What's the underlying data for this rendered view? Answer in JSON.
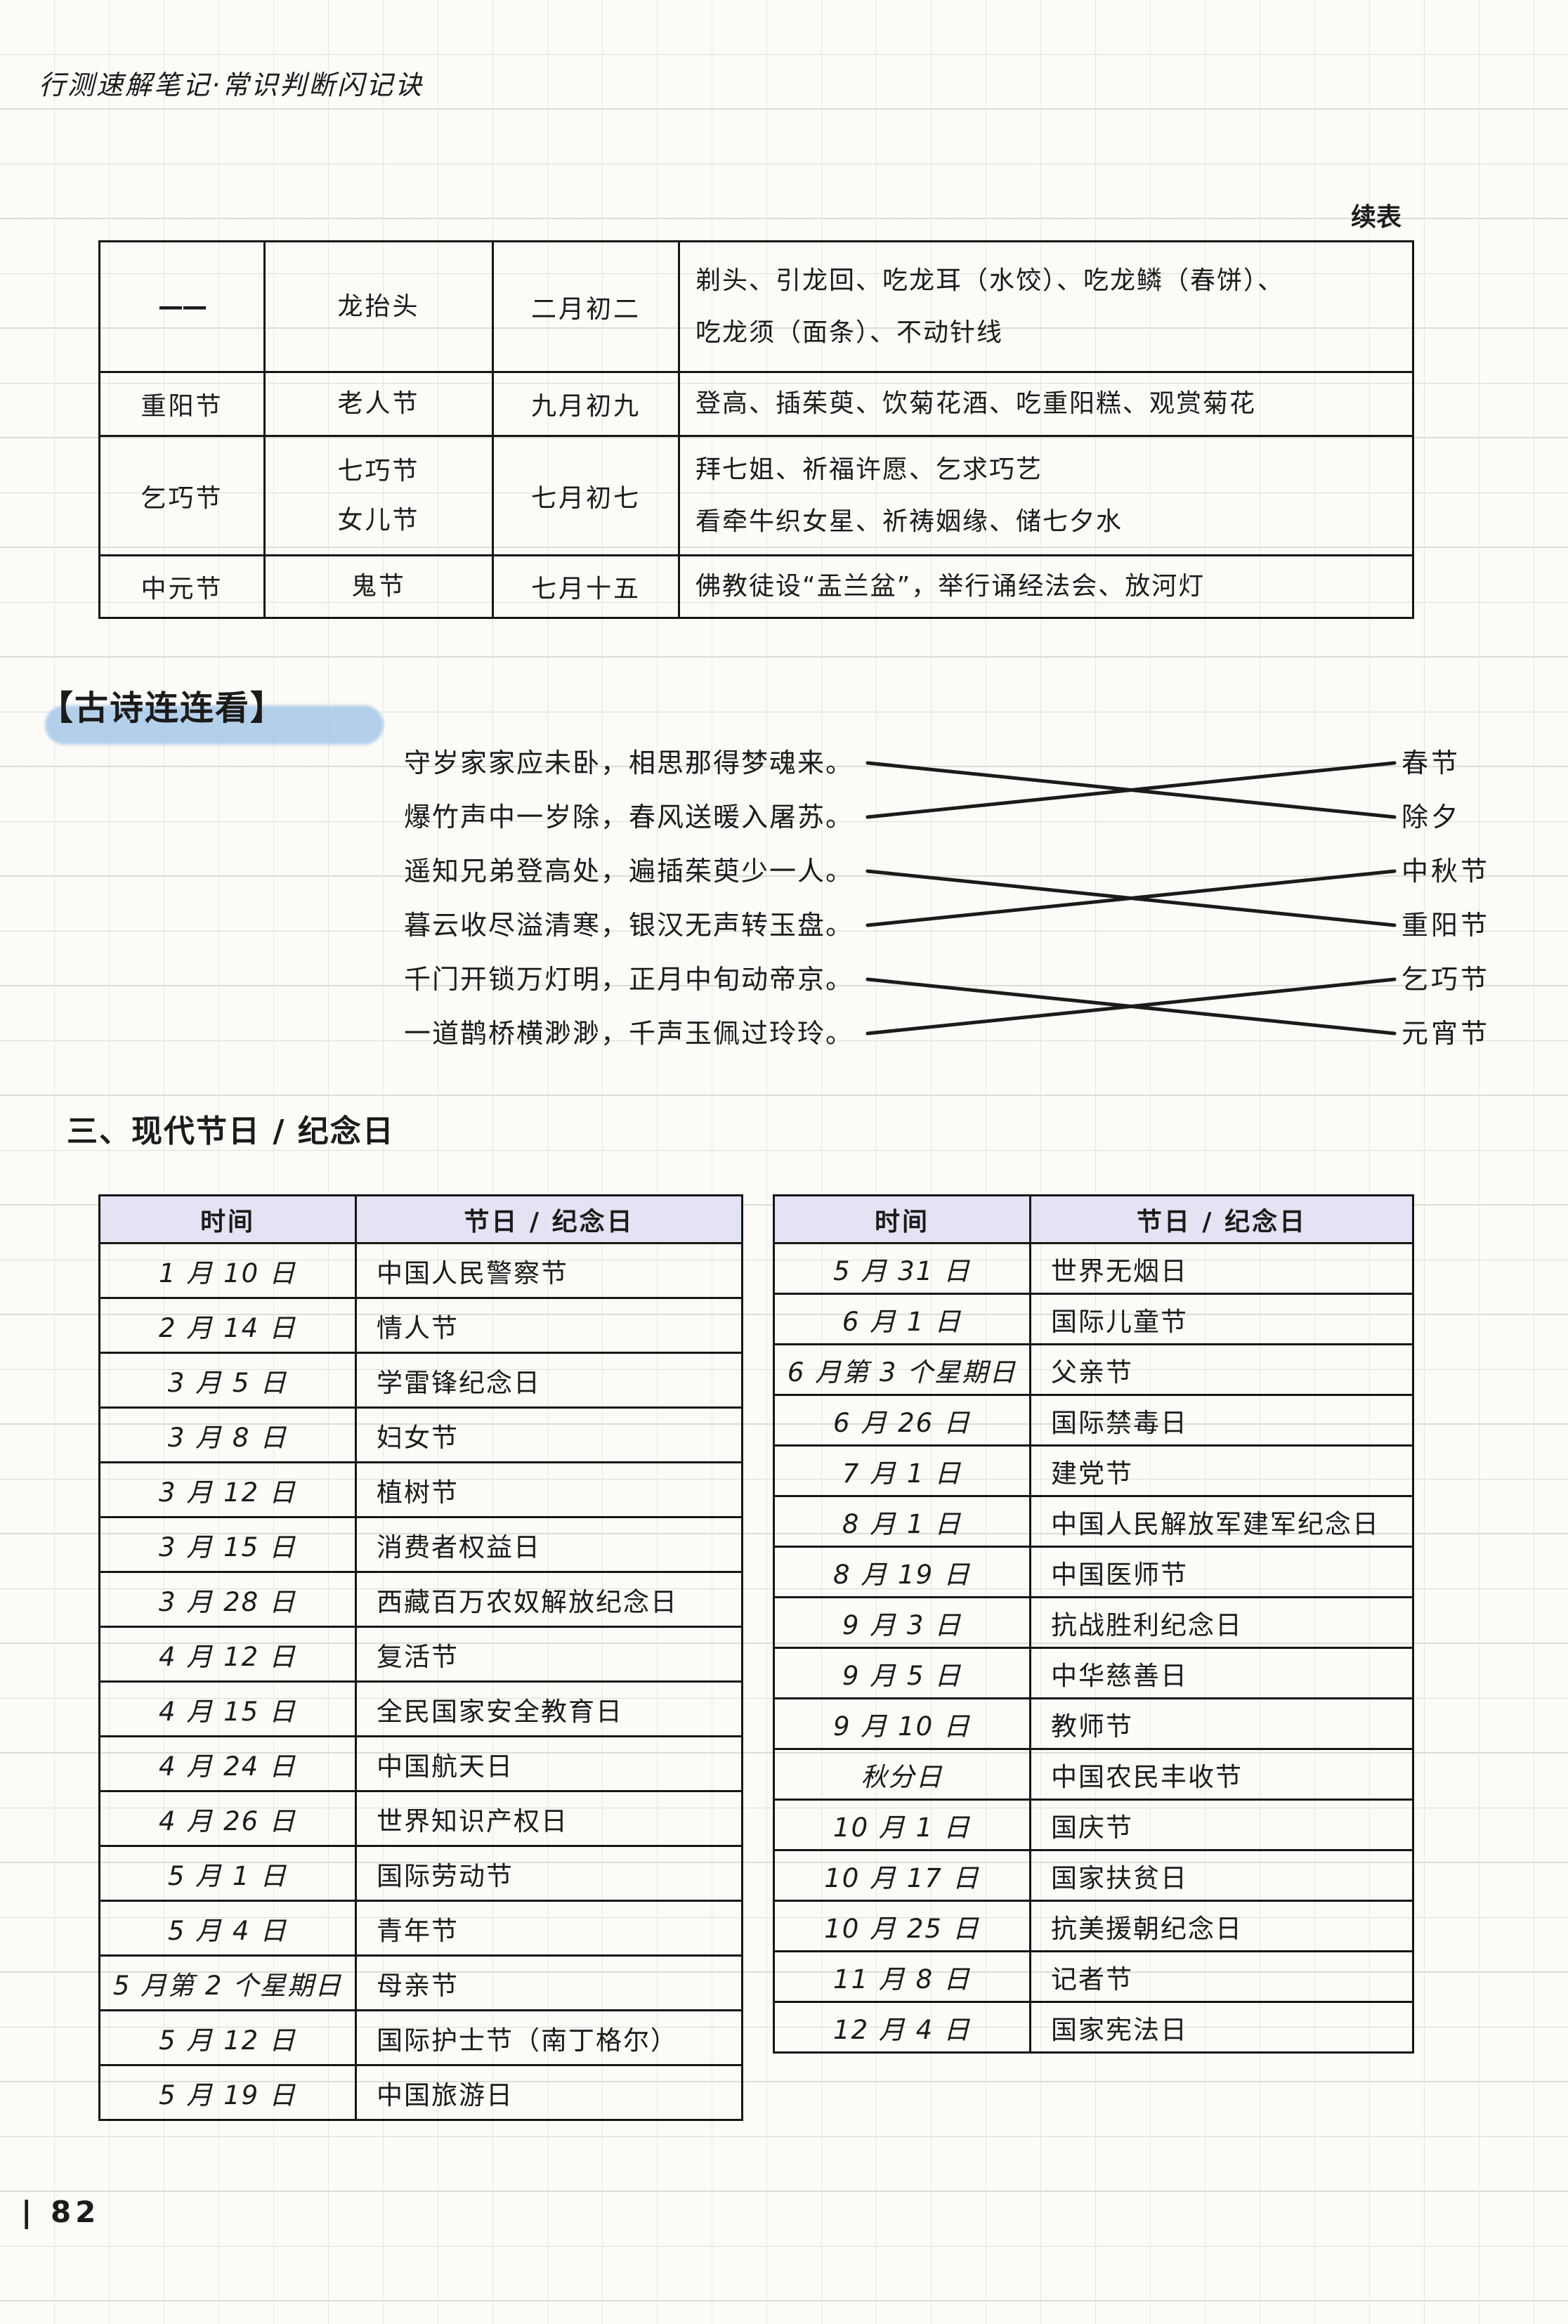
{
  "page": {
    "header_title": "行测速解笔记·常识判断闪记诀",
    "continued_label": "续表",
    "section_heading": "三、现代节日 / 纪念日",
    "page_number": "| 82"
  },
  "traditional_table": {
    "rows": [
      {
        "name": "——",
        "alias": [
          "龙抬头"
        ],
        "date": "二月初二",
        "customs": [
          "剃头、引龙回、吃龙耳（水饺）、吃龙鳞（春饼）、",
          "吃龙须（面条）、不动针线"
        ]
      },
      {
        "name": "重阳节",
        "alias": [
          "老人节"
        ],
        "date": "九月初九",
        "customs": [
          "登高、插茱萸、饮菊花酒、吃重阳糕、观赏菊花"
        ]
      },
      {
        "name": "乞巧节",
        "alias": [
          "七巧节",
          "女儿节"
        ],
        "date": "七月初七",
        "customs": [
          "拜七姐、祈福许愿、乞求巧艺",
          "看牵牛织女星、祈祷姻缘、储七夕水"
        ]
      },
      {
        "name": "中元节",
        "alias": [
          "鬼节"
        ],
        "date": "七月十五",
        "customs": [
          "佛教徒设“盂兰盆”，举行诵经法会、放河灯"
        ]
      }
    ]
  },
  "poem_match": {
    "title": "【古诗连连看】",
    "poems": [
      "守岁家家应未卧，相思那得梦魂来。",
      "爆竹声中一岁除，春风送暖入屠苏。",
      "遥知兄弟登高处，遍插茱萸少一人。",
      "暮云收尽溢清寒，银汉无声转玉盘。",
      "千门开锁万灯明，正月中旬动帝京。",
      "一道鹊桥横渺渺，千声玉佩过玲玲。"
    ],
    "labels": [
      "春节",
      "除夕",
      "中秋节",
      "重阳节",
      "乞巧节",
      "元宵节"
    ],
    "connections": [
      [
        0,
        1
      ],
      [
        1,
        0
      ],
      [
        2,
        3
      ],
      [
        3,
        2
      ],
      [
        4,
        5
      ],
      [
        5,
        4
      ]
    ]
  },
  "modern_tables": {
    "headers": [
      "时间",
      "节日 / 纪念日"
    ],
    "left_rows": [
      [
        "1 月 10 日",
        "中国人民警察节"
      ],
      [
        "2 月 14 日",
        "情人节"
      ],
      [
        "3 月 5 日",
        "学雷锋纪念日"
      ],
      [
        "3 月 8 日",
        "妇女节"
      ],
      [
        "3 月 12 日",
        "植树节"
      ],
      [
        "3 月 15 日",
        "消费者权益日"
      ],
      [
        "3 月 28 日",
        "西藏百万农奴解放纪念日"
      ],
      [
        "4 月 12 日",
        "复活节"
      ],
      [
        "4 月 15 日",
        "全民国家安全教育日"
      ],
      [
        "4 月 24 日",
        "中国航天日"
      ],
      [
        "4 月 26 日",
        "世界知识产权日"
      ],
      [
        "5 月 1 日",
        "国际劳动节"
      ],
      [
        "5 月 4 日",
        "青年节"
      ],
      [
        "5 月第 2 个星期日",
        "母亲节"
      ],
      [
        "5 月 12 日",
        "国际护士节（南丁格尔）"
      ],
      [
        "5 月 19 日",
        "中国旅游日"
      ]
    ],
    "right_rows": [
      [
        "5 月 31 日",
        "世界无烟日"
      ],
      [
        "6 月 1 日",
        "国际儿童节"
      ],
      [
        "6 月第 3 个星期日",
        "父亲节"
      ],
      [
        "6 月 26 日",
        "国际禁毒日"
      ],
      [
        "7 月 1 日",
        "建党节"
      ],
      [
        "8 月 1 日",
        "中国人民解放军建军纪念日"
      ],
      [
        "8 月 19 日",
        "中国医师节"
      ],
      [
        "9 月 3 日",
        "抗战胜利纪念日"
      ],
      [
        "9 月 5 日",
        "中华慈善日"
      ],
      [
        "9 月 10 日",
        "教师节"
      ],
      [
        "秋分日",
        "中国农民丰收节"
      ],
      [
        "10 月 1 日",
        "国庆节"
      ],
      [
        "10 月 17 日",
        "国家扶贫日"
      ],
      [
        "10 月 25 日",
        "抗美援朝纪念日"
      ],
      [
        "11 月 8 日",
        "记者节"
      ],
      [
        "12 月 4 日",
        "国家宪法日"
      ]
    ]
  },
  "colors": {
    "ink": "#1b1b1b",
    "table_border": "#161616",
    "header_bg": "#e3e3f3",
    "highlight_blue": "#a2c5e7"
  }
}
